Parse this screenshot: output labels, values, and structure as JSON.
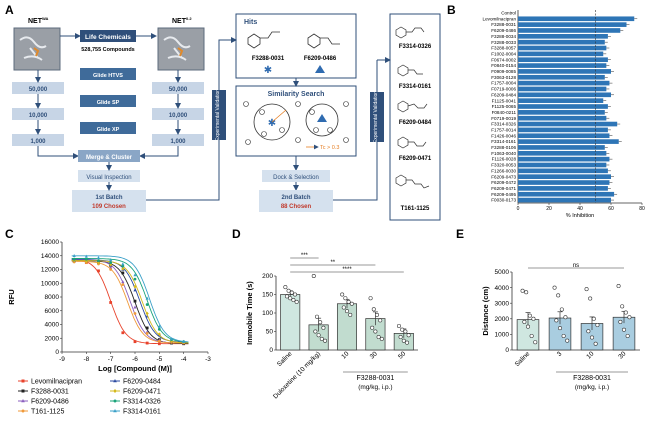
{
  "panel_letters": [
    "A",
    "B",
    "C",
    "D",
    "E"
  ],
  "panel_a": {
    "net_left_label": "NET",
    "net_left_sup": "WA",
    "net_right_label": "NET",
    "net_right_sup": "0.2",
    "library_title": "Life Chemicals",
    "library_count": "528,755 Compounds",
    "steps": [
      "Glide HTVS",
      "Glide SP",
      "Glide XP"
    ],
    "counts_left": [
      "50,000",
      "10,000",
      "1,000"
    ],
    "counts_right": [
      "50,000",
      "10,000",
      "1,000"
    ],
    "merge_label": "Merge & Cluster",
    "visual_label": "Visual Inspection",
    "batch1_label": "1st Batch",
    "batch1_chosen": "109 Chosen",
    "side_bar_1": "Experimental Validation",
    "hits_title": "Hits",
    "hit_1": "F3288-0031",
    "hit_2": "F6209-0486",
    "similarity_title": "Similarity Search",
    "tc_label": "Tc > 0.3",
    "dock_label": "Dock & Selection",
    "batch2_label": "2nd Batch",
    "batch2_chosen": "88 Chosen",
    "side_bar_2": "Experimental Validation",
    "right_compounds": [
      "F3314-0326",
      "F3314-0161",
      "F6209-0484",
      "F6209-0471",
      "T161-1125"
    ]
  },
  "panel_b": {
    "chart_data": {
      "type": "bar",
      "orientation": "horizontal",
      "categories": [
        "Control",
        "Levomilnacipran",
        "F3288-0031",
        "F6209-0486",
        "F3288-0034",
        "F3288-0033",
        "F3288-0057",
        "F1002-0004",
        "F0674-0002",
        "F0840-0154",
        "F0909-0085",
        "F3063-0128",
        "F1757-0004",
        "F0719-0006",
        "F6209-0484",
        "F1125-0041",
        "F1125-0065",
        "F0840-0211",
        "F0719-0019",
        "F3314-0326",
        "F1757-0014",
        "F1426-0046",
        "F3314-0161",
        "F3288-0106",
        "F1063-0040",
        "F1126-0028",
        "F3320-0053",
        "F1266-0030",
        "F6209-0473",
        "F6209-0472",
        "F6209-0471",
        "F6209-0495",
        "F0030-0173"
      ],
      "values": [
        0,
        75,
        70,
        66,
        58,
        56,
        57,
        55,
        58,
        57,
        60,
        56,
        59,
        57,
        60,
        55,
        58,
        56,
        57,
        64,
        58,
        59,
        65,
        56,
        57,
        59,
        57,
        58,
        60,
        59,
        58,
        62,
        60
      ],
      "xlabel": "% Inhibition",
      "xlim": [
        0,
        80
      ],
      "ticks": [
        "0",
        "20",
        "40",
        "60",
        "80"
      ],
      "reference_line": 50
    }
  },
  "panel_c": {
    "chart_data": {
      "type": "line",
      "ylabel": "RFU",
      "xlabel": "Log [Compound (M)]",
      "xlim": [
        -9,
        -3
      ],
      "ylim": [
        0,
        16000
      ],
      "x_ticks": [
        "-9",
        "-8",
        "-7",
        "-6",
        "-5",
        "-4",
        "-3"
      ],
      "y_ticks": [
        "0",
        "2000",
        "4000",
        "6000",
        "8000",
        "10000",
        "12000",
        "14000",
        "16000"
      ],
      "x": [
        -8.5,
        -8,
        -7.5,
        -7,
        -6.5,
        -6,
        -5.5,
        -5,
        -4.5,
        -4
      ],
      "series": [
        {
          "name": "Levomilnacipran",
          "color": "#e8432c",
          "marker": "square",
          "top": 13600,
          "bottom": 1200,
          "logec50": -7.0,
          "values": [
            13400,
            13000,
            11800,
            7200,
            2800,
            1500,
            1300,
            1200,
            1400,
            1300
          ]
        },
        {
          "name": "F3288-0031",
          "color": "#222222",
          "marker": "square",
          "top": 13300,
          "bottom": 1200,
          "logec50": -6.0,
          "values": [
            13200,
            13200,
            13000,
            12600,
            11500,
            7400,
            3500,
            1800,
            1300,
            1200
          ]
        },
        {
          "name": "F6209-0486",
          "color": "#8b5fbf",
          "marker": "triangle",
          "top": 13500,
          "bottom": 1300,
          "logec50": -6.2,
          "values": [
            13500,
            13300,
            13200,
            12300,
            10200,
            6500,
            2900,
            1700,
            1500,
            1300
          ]
        },
        {
          "name": "T161-1125",
          "color": "#f09a3a",
          "marker": "circle",
          "top": 13200,
          "bottom": 1300,
          "logec50": -6.3,
          "values": [
            13100,
            13000,
            12800,
            12000,
            9800,
            5600,
            2700,
            1600,
            1400,
            1300
          ]
        },
        {
          "name": "F6209-0484",
          "color": "#2b4aa0",
          "marker": "triangle",
          "top": 13400,
          "bottom": 1400,
          "logec50": -5.8,
          "values": [
            13300,
            13300,
            13100,
            12800,
            12000,
            9000,
            5200,
            2500,
            1600,
            1500
          ]
        },
        {
          "name": "F6209-0471",
          "color": "#d4b91c",
          "marker": "diamond",
          "top": 13300,
          "bottom": 1300,
          "logec50": -5.7,
          "values": [
            13300,
            13200,
            13000,
            12700,
            12100,
            9500,
            5600,
            2600,
            1600,
            1400
          ]
        },
        {
          "name": "F3314-0326",
          "color": "#1aa37a",
          "marker": "circle",
          "top": 13600,
          "bottom": 1400,
          "logec50": -5.5,
          "values": [
            13500,
            13500,
            13300,
            13000,
            12500,
            10600,
            6900,
            3300,
            1800,
            1500
          ]
        },
        {
          "name": "F3314-0161",
          "color": "#3aa0c8",
          "marker": "triangle",
          "top": 14000,
          "bottom": 1400,
          "logec50": -5.4,
          "values": [
            14000,
            13900,
            13700,
            13400,
            12800,
            11200,
            7800,
            3700,
            1900,
            1500
          ]
        }
      ]
    }
  },
  "panel_d": {
    "chart_data": {
      "type": "bar",
      "ylabel": "Immobile Time (s)",
      "ylim": [
        0,
        200
      ],
      "y_ticks": [
        "0",
        "50",
        "100",
        "150",
        "200"
      ],
      "categories": [
        "Saline",
        "Duloxetine (10 mg/kg)",
        "10",
        "30",
        "50"
      ],
      "values": [
        150,
        68,
        125,
        85,
        45
      ],
      "errors": [
        10,
        18,
        12,
        18,
        12
      ],
      "points": [
        [
          170,
          160,
          155,
          150,
          145,
          140,
          135,
          130
        ],
        [
          200,
          90,
          75,
          60,
          50,
          40,
          30,
          25
        ],
        [
          150,
          140,
          130,
          125,
          115,
          105,
          95
        ],
        [
          140,
          110,
          95,
          80,
          60,
          50,
          35,
          30
        ],
        [
          65,
          55,
          50,
          40,
          35,
          25,
          20
        ]
      ],
      "group_label": "F3288-0031",
      "group_unit": "(mg/kg, i.p.)",
      "significance": [
        {
          "from": 0,
          "to": 1,
          "label": "***"
        },
        {
          "from": 0,
          "to": 3,
          "label": "**"
        },
        {
          "from": 0,
          "to": 4,
          "label": "****"
        }
      ]
    }
  },
  "panel_e": {
    "chart_data": {
      "type": "bar",
      "ylabel": "Distance (cm)",
      "ylim": [
        0,
        5000
      ],
      "y_ticks": [
        "0",
        "1000",
        "2000",
        "3000",
        "4000",
        "5000"
      ],
      "categories": [
        "Saline",
        "3",
        "10",
        "30"
      ],
      "values": [
        1950,
        2050,
        1700,
        2100
      ],
      "errors": [
        450,
        400,
        420,
        380
      ],
      "points": [
        [
          3800,
          3700,
          2200,
          2000,
          1800,
          1500,
          900,
          500
        ],
        [
          4000,
          3500,
          2600,
          2100,
          1900,
          1400,
          900,
          600
        ],
        [
          3900,
          3300,
          2000,
          1600,
          1200,
          800,
          400
        ],
        [
          4100,
          2800,
          2400,
          2100,
          1800,
          1300,
          900
        ]
      ],
      "group_label": "F3288-0031",
      "group_unit": "(mg/kg, i.p.)",
      "significance": [
        {
          "from": 0,
          "to": 3,
          "label": "ns"
        }
      ]
    }
  }
}
